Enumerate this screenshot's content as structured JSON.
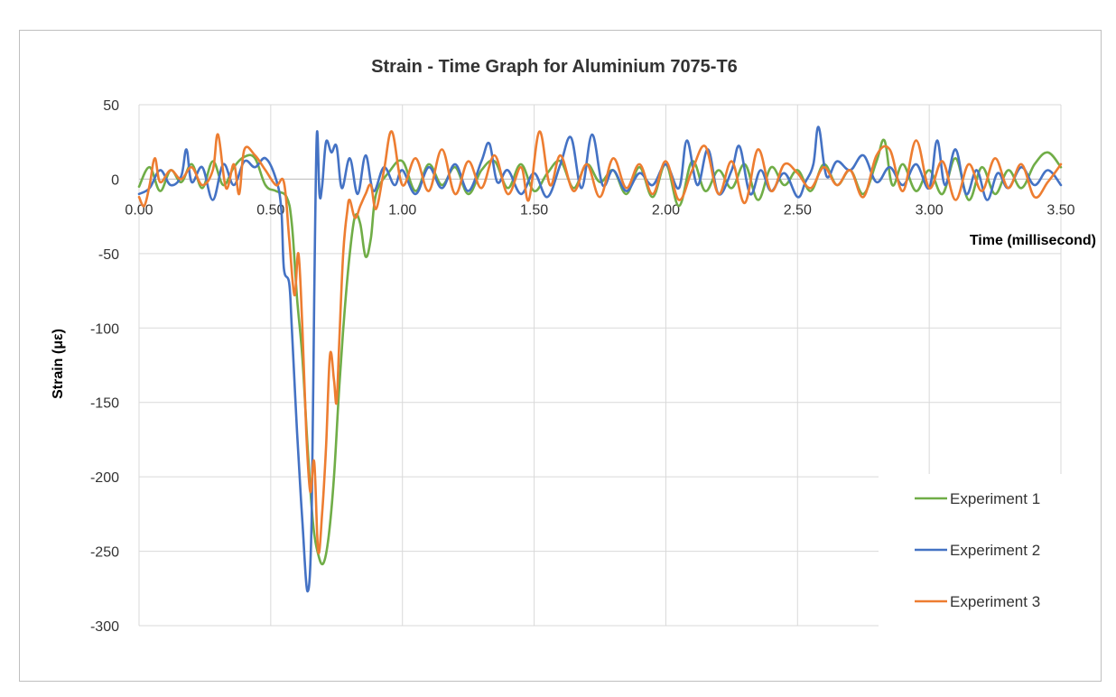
{
  "chart_data": {
    "type": "line",
    "title": "Strain - Time Graph for Aluminium 7075-T6",
    "xlabel": "Time (millisecond)",
    "ylabel": "Strain (με)",
    "xlim": [
      0,
      3.5
    ],
    "ylim": [
      -300,
      50
    ],
    "x_ticks": [
      "0.00",
      "0.50",
      "1.00",
      "1.50",
      "2.00",
      "2.50",
      "3.00",
      "3.50"
    ],
    "y_ticks": [
      "50",
      "0",
      "-50",
      "-100",
      "-150",
      "-200",
      "-250",
      "-300"
    ],
    "grid": true,
    "legend_position": "bottom-right",
    "series": [
      {
        "name": "Experiment 1",
        "color": "#70AD47",
        "points": [
          [
            0,
            -5
          ],
          [
            0.04,
            8
          ],
          [
            0.08,
            -8
          ],
          [
            0.12,
            6
          ],
          [
            0.16,
            -2
          ],
          [
            0.2,
            10
          ],
          [
            0.24,
            -6
          ],
          [
            0.28,
            12
          ],
          [
            0.32,
            -4
          ],
          [
            0.36,
            8
          ],
          [
            0.4,
            15
          ],
          [
            0.44,
            14
          ],
          [
            0.48,
            -4
          ],
          [
            0.52,
            -8
          ],
          [
            0.56,
            -12
          ],
          [
            0.58,
            -30
          ],
          [
            0.6,
            -80
          ],
          [
            0.62,
            -120
          ],
          [
            0.64,
            -180
          ],
          [
            0.66,
            -230
          ],
          [
            0.68,
            -252
          ],
          [
            0.7,
            -258
          ],
          [
            0.72,
            -240
          ],
          [
            0.74,
            -200
          ],
          [
            0.76,
            -140
          ],
          [
            0.78,
            -90
          ],
          [
            0.8,
            -50
          ],
          [
            0.82,
            -25
          ],
          [
            0.84,
            -30
          ],
          [
            0.86,
            -52
          ],
          [
            0.88,
            -40
          ],
          [
            0.9,
            -10
          ],
          [
            0.95,
            5
          ],
          [
            1.0,
            12
          ],
          [
            1.05,
            -8
          ],
          [
            1.1,
            10
          ],
          [
            1.15,
            -4
          ],
          [
            1.2,
            8
          ],
          [
            1.25,
            -10
          ],
          [
            1.3,
            6
          ],
          [
            1.35,
            12
          ],
          [
            1.4,
            -6
          ],
          [
            1.45,
            10
          ],
          [
            1.5,
            -8
          ],
          [
            1.55,
            4
          ],
          [
            1.6,
            12
          ],
          [
            1.65,
            -6
          ],
          [
            1.7,
            10
          ],
          [
            1.75,
            -2
          ],
          [
            1.8,
            6
          ],
          [
            1.85,
            -10
          ],
          [
            1.9,
            8
          ],
          [
            1.95,
            -12
          ],
          [
            2.0,
            10
          ],
          [
            2.05,
            -18
          ],
          [
            2.1,
            12
          ],
          [
            2.15,
            -8
          ],
          [
            2.2,
            6
          ],
          [
            2.25,
            -6
          ],
          [
            2.3,
            10
          ],
          [
            2.35,
            -14
          ],
          [
            2.4,
            8
          ],
          [
            2.45,
            -4
          ],
          [
            2.5,
            6
          ],
          [
            2.55,
            -8
          ],
          [
            2.6,
            10
          ],
          [
            2.65,
            -4
          ],
          [
            2.7,
            6
          ],
          [
            2.75,
            -10
          ],
          [
            2.8,
            12
          ],
          [
            2.83,
            26
          ],
          [
            2.86,
            -4
          ],
          [
            2.9,
            10
          ],
          [
            2.95,
            -8
          ],
          [
            3.0,
            6
          ],
          [
            3.05,
            -10
          ],
          [
            3.1,
            14
          ],
          [
            3.15,
            -14
          ],
          [
            3.2,
            8
          ],
          [
            3.25,
            -10
          ],
          [
            3.3,
            6
          ],
          [
            3.35,
            -6
          ],
          [
            3.4,
            10
          ],
          [
            3.45,
            18
          ],
          [
            3.5,
            8
          ]
        ]
      },
      {
        "name": "Experiment 2",
        "color": "#4472C4",
        "points": [
          [
            0,
            -10
          ],
          [
            0.04,
            -6
          ],
          [
            0.08,
            6
          ],
          [
            0.12,
            -4
          ],
          [
            0.16,
            2
          ],
          [
            0.18,
            20
          ],
          [
            0.2,
            -2
          ],
          [
            0.24,
            8
          ],
          [
            0.28,
            -14
          ],
          [
            0.32,
            10
          ],
          [
            0.36,
            -4
          ],
          [
            0.4,
            12
          ],
          [
            0.44,
            8
          ],
          [
            0.48,
            14
          ],
          [
            0.52,
            0
          ],
          [
            0.54,
            -20
          ],
          [
            0.55,
            -60
          ],
          [
            0.57,
            -70
          ],
          [
            0.58,
            -100
          ],
          [
            0.6,
            -170
          ],
          [
            0.62,
            -230
          ],
          [
            0.64,
            -277
          ],
          [
            0.655,
            -230
          ],
          [
            0.665,
            -80
          ],
          [
            0.675,
            30
          ],
          [
            0.685,
            -10
          ],
          [
            0.695,
            -5
          ],
          [
            0.71,
            25
          ],
          [
            0.73,
            18
          ],
          [
            0.75,
            22
          ],
          [
            0.77,
            -6
          ],
          [
            0.8,
            14
          ],
          [
            0.83,
            -10
          ],
          [
            0.86,
            16
          ],
          [
            0.89,
            -8
          ],
          [
            0.93,
            8
          ],
          [
            0.97,
            -4
          ],
          [
            1.0,
            6
          ],
          [
            1.05,
            -10
          ],
          [
            1.1,
            8
          ],
          [
            1.15,
            -6
          ],
          [
            1.2,
            10
          ],
          [
            1.25,
            -8
          ],
          [
            1.3,
            12
          ],
          [
            1.33,
            24
          ],
          [
            1.36,
            -2
          ],
          [
            1.4,
            6
          ],
          [
            1.45,
            -10
          ],
          [
            1.5,
            4
          ],
          [
            1.55,
            -12
          ],
          [
            1.6,
            10
          ],
          [
            1.64,
            28
          ],
          [
            1.68,
            -6
          ],
          [
            1.72,
            30
          ],
          [
            1.76,
            -4
          ],
          [
            1.8,
            6
          ],
          [
            1.85,
            -8
          ],
          [
            1.9,
            4
          ],
          [
            1.95,
            -4
          ],
          [
            2.0,
            10
          ],
          [
            2.05,
            -6
          ],
          [
            2.08,
            26
          ],
          [
            2.12,
            -4
          ],
          [
            2.16,
            20
          ],
          [
            2.2,
            -10
          ],
          [
            2.25,
            6
          ],
          [
            2.28,
            22
          ],
          [
            2.32,
            -10
          ],
          [
            2.36,
            6
          ],
          [
            2.4,
            -8
          ],
          [
            2.45,
            4
          ],
          [
            2.5,
            -12
          ],
          [
            2.53,
            -2
          ],
          [
            2.56,
            10
          ],
          [
            2.58,
            35
          ],
          [
            2.61,
            2
          ],
          [
            2.65,
            12
          ],
          [
            2.7,
            6
          ],
          [
            2.75,
            16
          ],
          [
            2.8,
            -2
          ],
          [
            2.85,
            8
          ],
          [
            2.9,
            -4
          ],
          [
            2.95,
            10
          ],
          [
            3.0,
            -6
          ],
          [
            3.03,
            26
          ],
          [
            3.06,
            -4
          ],
          [
            3.1,
            20
          ],
          [
            3.14,
            -10
          ],
          [
            3.18,
            6
          ],
          [
            3.22,
            -14
          ],
          [
            3.26,
            4
          ],
          [
            3.3,
            -6
          ],
          [
            3.35,
            8
          ],
          [
            3.4,
            -4
          ],
          [
            3.45,
            6
          ],
          [
            3.5,
            -4
          ]
        ]
      },
      {
        "name": "Experiment 3",
        "color": "#ED7D31",
        "points": [
          [
            0,
            -12
          ],
          [
            0.02,
            -18
          ],
          [
            0.04,
            -4
          ],
          [
            0.06,
            14
          ],
          [
            0.08,
            -2
          ],
          [
            0.12,
            6
          ],
          [
            0.16,
            0
          ],
          [
            0.2,
            8
          ],
          [
            0.24,
            -4
          ],
          [
            0.28,
            6
          ],
          [
            0.3,
            30
          ],
          [
            0.33,
            -6
          ],
          [
            0.36,
            10
          ],
          [
            0.38,
            -10
          ],
          [
            0.4,
            20
          ],
          [
            0.44,
            16
          ],
          [
            0.48,
            6
          ],
          [
            0.52,
            -4
          ],
          [
            0.55,
            -2
          ],
          [
            0.57,
            -40
          ],
          [
            0.59,
            -78
          ],
          [
            0.605,
            -50
          ],
          [
            0.62,
            -100
          ],
          [
            0.635,
            -170
          ],
          [
            0.65,
            -210
          ],
          [
            0.665,
            -190
          ],
          [
            0.68,
            -250
          ],
          [
            0.695,
            -225
          ],
          [
            0.71,
            -180
          ],
          [
            0.725,
            -118
          ],
          [
            0.74,
            -135
          ],
          [
            0.75,
            -150
          ],
          [
            0.76,
            -110
          ],
          [
            0.775,
            -50
          ],
          [
            0.79,
            -22
          ],
          [
            0.8,
            -14
          ],
          [
            0.82,
            -26
          ],
          [
            0.84,
            -18
          ],
          [
            0.86,
            -10
          ],
          [
            0.88,
            -4
          ],
          [
            0.9,
            -20
          ],
          [
            0.93,
            6
          ],
          [
            0.96,
            32
          ],
          [
            1.0,
            -4
          ],
          [
            1.05,
            14
          ],
          [
            1.1,
            -8
          ],
          [
            1.15,
            20
          ],
          [
            1.2,
            -10
          ],
          [
            1.25,
            12
          ],
          [
            1.3,
            -6
          ],
          [
            1.35,
            16
          ],
          [
            1.4,
            -10
          ],
          [
            1.45,
            8
          ],
          [
            1.48,
            -14
          ],
          [
            1.52,
            32
          ],
          [
            1.56,
            -4
          ],
          [
            1.6,
            16
          ],
          [
            1.65,
            -8
          ],
          [
            1.7,
            10
          ],
          [
            1.75,
            -12
          ],
          [
            1.8,
            14
          ],
          [
            1.85,
            -6
          ],
          [
            1.9,
            10
          ],
          [
            1.95,
            -10
          ],
          [
            2.0,
            12
          ],
          [
            2.05,
            -14
          ],
          [
            2.1,
            6
          ],
          [
            2.15,
            22
          ],
          [
            2.2,
            -10
          ],
          [
            2.25,
            12
          ],
          [
            2.3,
            -16
          ],
          [
            2.35,
            20
          ],
          [
            2.4,
            -8
          ],
          [
            2.45,
            10
          ],
          [
            2.5,
            4
          ],
          [
            2.55,
            -6
          ],
          [
            2.6,
            8
          ],
          [
            2.65,
            -4
          ],
          [
            2.7,
            6
          ],
          [
            2.75,
            -12
          ],
          [
            2.8,
            16
          ],
          [
            2.85,
            20
          ],
          [
            2.9,
            -8
          ],
          [
            2.95,
            26
          ],
          [
            3.0,
            -6
          ],
          [
            3.05,
            12
          ],
          [
            3.1,
            -14
          ],
          [
            3.15,
            10
          ],
          [
            3.2,
            -8
          ],
          [
            3.25,
            14
          ],
          [
            3.3,
            -6
          ],
          [
            3.35,
            10
          ],
          [
            3.4,
            -12
          ],
          [
            3.45,
            -2
          ],
          [
            3.5,
            10
          ]
        ]
      }
    ]
  }
}
